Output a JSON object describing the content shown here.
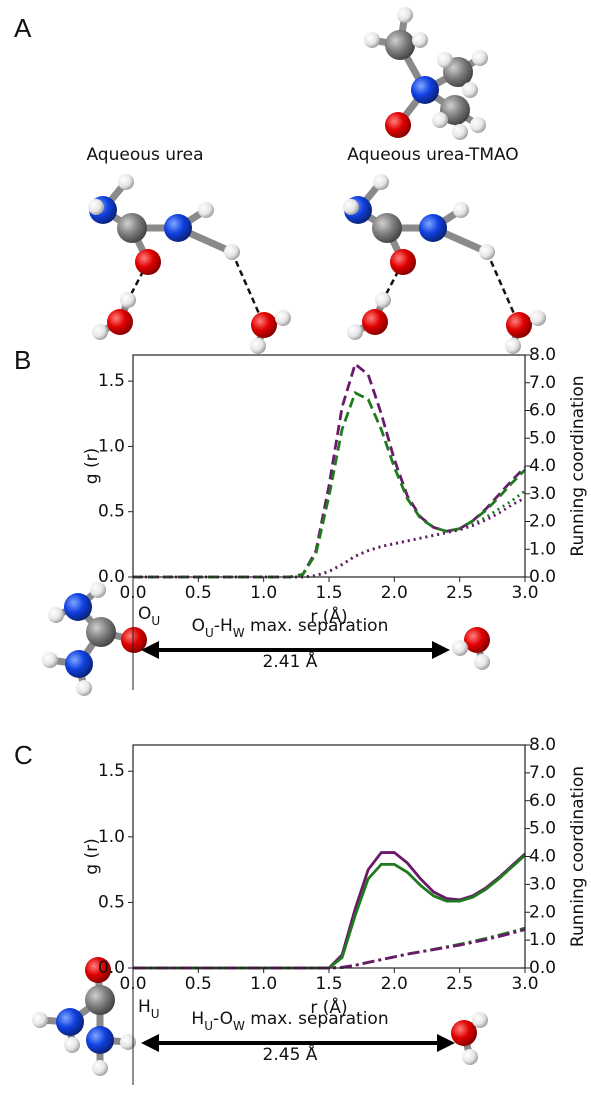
{
  "panels": {
    "a": "A",
    "b": "B",
    "c": "C"
  },
  "panel_a": {
    "left_title": "Aqueous urea",
    "right_title": "Aqueous urea-TMAO"
  },
  "chart_data": [
    {
      "type": "line",
      "x": [
        0.0,
        0.1,
        0.2,
        0.3,
        0.4,
        0.5,
        0.6,
        0.7,
        0.8,
        0.9,
        1.0,
        1.1,
        1.2,
        1.3,
        1.4,
        1.5,
        1.6,
        1.7,
        1.8,
        1.9,
        2.0,
        2.1,
        2.2,
        2.3,
        2.4,
        2.5,
        2.6,
        2.7,
        2.8,
        2.9,
        3.0
      ],
      "series": [
        {
          "color": "#6a1a6a",
          "dash": "dashed",
          "values": [
            0,
            0,
            0,
            0,
            0,
            0,
            0,
            0,
            0,
            0,
            0,
            0,
            0,
            0.02,
            0.2,
            0.7,
            1.3,
            1.63,
            1.55,
            1.25,
            0.9,
            0.62,
            0.46,
            0.38,
            0.35,
            0.37,
            0.43,
            0.52,
            0.63,
            0.74,
            0.84
          ]
        },
        {
          "color": "#1f7a1f",
          "dash": "dashed",
          "values": [
            0,
            0,
            0,
            0,
            0,
            0,
            0,
            0,
            0,
            0,
            0,
            0,
            0,
            0.02,
            0.18,
            0.62,
            1.13,
            1.41,
            1.36,
            1.13,
            0.84,
            0.6,
            0.45,
            0.38,
            0.35,
            0.37,
            0.43,
            0.51,
            0.61,
            0.72,
            0.82
          ]
        },
        {
          "color": "#1f7a1f",
          "dash": "dotted",
          "axis": "y2",
          "values": [
            0,
            0,
            0,
            0,
            0,
            0,
            0,
            0,
            0,
            0,
            0,
            0,
            0,
            0,
            0.05,
            0.2,
            0.45,
            0.75,
            0.95,
            1.1,
            1.2,
            1.3,
            1.4,
            1.5,
            1.6,
            1.72,
            1.9,
            2.15,
            2.45,
            2.75,
            3.1
          ]
        },
        {
          "color": "#6a1a6a",
          "dash": "dotted",
          "axis": "y2",
          "values": [
            0,
            0,
            0,
            0,
            0,
            0,
            0,
            0,
            0,
            0,
            0,
            0,
            0,
            0,
            0.05,
            0.2,
            0.45,
            0.75,
            0.95,
            1.1,
            1.2,
            1.3,
            1.4,
            1.5,
            1.6,
            1.7,
            1.85,
            2.05,
            2.3,
            2.6,
            2.85
          ]
        }
      ],
      "xlim": [
        0,
        3
      ],
      "ylim": [
        0,
        1.7
      ],
      "y2lim": [
        0,
        8
      ],
      "xticks": [
        {
          "value": 0,
          "label": "0.0"
        },
        {
          "value": 0.5,
          "label": "0.5"
        },
        {
          "value": 1,
          "label": "1.0"
        },
        {
          "value": 1.5,
          "label": "1.5"
        },
        {
          "value": 2,
          "label": "2.0"
        },
        {
          "value": 2.5,
          "label": "2.5"
        },
        {
          "value": 3,
          "label": "3.0"
        }
      ],
      "yticks": [
        {
          "value": 0,
          "label": "0.0"
        },
        0.5,
        {
          "value": 1,
          "label": "1.0"
        },
        1.5
      ],
      "y2ticks": [
        {
          "value": 0,
          "label": "0.0"
        },
        {
          "value": 1,
          "label": "1.0"
        },
        {
          "value": 2,
          "label": "2.0"
        },
        {
          "value": 3,
          "label": "3.0"
        },
        {
          "value": 4,
          "label": "4.0"
        },
        {
          "value": 5,
          "label": "5.0"
        },
        {
          "value": 6,
          "label": "6.0"
        },
        {
          "value": 7,
          "label": "7.0"
        },
        {
          "value": 8,
          "label": "8.0"
        }
      ],
      "xlabel": "r (Å)",
      "ylabel": "g (r)",
      "y2label": "Running coordination",
      "annotation": {
        "atom_label": [
          "O",
          "U"
        ],
        "arrow_label": [
          "O",
          "U",
          "-H",
          "W",
          " max. separation"
        ],
        "distance": "2.41 Å"
      }
    },
    {
      "type": "line",
      "x": [
        0.0,
        0.1,
        0.2,
        0.3,
        0.4,
        0.5,
        0.6,
        0.7,
        0.8,
        0.9,
        1.0,
        1.1,
        1.2,
        1.3,
        1.4,
        1.5,
        1.6,
        1.7,
        1.8,
        1.9,
        2.0,
        2.1,
        2.2,
        2.3,
        2.4,
        2.5,
        2.6,
        2.7,
        2.8,
        2.9,
        3.0
      ],
      "series": [
        {
          "color": "#6a1a6a",
          "dash": "solid",
          "values": [
            0,
            0,
            0,
            0,
            0,
            0,
            0,
            0,
            0,
            0,
            0,
            0,
            0,
            0,
            0,
            0,
            0.1,
            0.45,
            0.75,
            0.88,
            0.88,
            0.8,
            0.68,
            0.58,
            0.53,
            0.52,
            0.55,
            0.61,
            0.69,
            0.78,
            0.87
          ]
        },
        {
          "color": "#1f7a1f",
          "dash": "solid",
          "values": [
            0,
            0,
            0,
            0,
            0,
            0,
            0,
            0,
            0,
            0,
            0,
            0,
            0,
            0,
            0,
            0,
            0.08,
            0.4,
            0.68,
            0.79,
            0.79,
            0.73,
            0.63,
            0.55,
            0.51,
            0.51,
            0.54,
            0.6,
            0.68,
            0.77,
            0.86
          ]
        },
        {
          "color": "#1f7a1f",
          "dash": "dashdot",
          "axis": "y2",
          "values": [
            0,
            0,
            0,
            0,
            0,
            0,
            0,
            0,
            0,
            0,
            0,
            0,
            0,
            0,
            0,
            0,
            0.02,
            0.1,
            0.2,
            0.3,
            0.4,
            0.5,
            0.58,
            0.67,
            0.76,
            0.85,
            0.95,
            1.06,
            1.18,
            1.3,
            1.43
          ]
        },
        {
          "color": "#6a1a6a",
          "dash": "dashdot",
          "axis": "y2",
          "values": [
            0,
            0,
            0,
            0,
            0,
            0,
            0,
            0,
            0,
            0,
            0,
            0,
            0,
            0,
            0,
            0,
            0.02,
            0.1,
            0.2,
            0.3,
            0.4,
            0.5,
            0.58,
            0.66,
            0.74,
            0.82,
            0.92,
            1.02,
            1.13,
            1.25,
            1.38
          ]
        }
      ],
      "xlim": [
        0,
        3
      ],
      "ylim": [
        0,
        1.7
      ],
      "y2lim": [
        0,
        8
      ],
      "xticks": [
        {
          "value": 0,
          "label": "0.0"
        },
        {
          "value": 0.5,
          "label": "0.5"
        },
        {
          "value": 1,
          "label": "1.0"
        },
        {
          "value": 1.5,
          "label": "1.5"
        },
        {
          "value": 2,
          "label": "2.0"
        },
        {
          "value": 2.5,
          "label": "2.5"
        },
        {
          "value": 3,
          "label": "3.0"
        }
      ],
      "yticks": [
        {
          "value": 0,
          "label": "0.0"
        },
        0.5,
        {
          "value": 1,
          "label": "1.0"
        },
        1.5
      ],
      "y2ticks": [
        {
          "value": 0,
          "label": "0.0"
        },
        {
          "value": 1,
          "label": "1.0"
        },
        {
          "value": 2,
          "label": "2.0"
        },
        {
          "value": 3,
          "label": "3.0"
        },
        {
          "value": 4,
          "label": "4.0"
        },
        {
          "value": 5,
          "label": "5.0"
        },
        {
          "value": 6,
          "label": "6.0"
        },
        {
          "value": 7,
          "label": "7.0"
        },
        {
          "value": 8,
          "label": "8.0"
        }
      ],
      "xlabel": "r (Å)",
      "ylabel": "g (r)",
      "y2label": "Running coordination",
      "annotation": {
        "atom_label": [
          "H",
          "U"
        ],
        "arrow_label": [
          "H",
          "U",
          "-O",
          "W",
          " max. separation"
        ],
        "distance": "2.45 Å"
      }
    }
  ]
}
